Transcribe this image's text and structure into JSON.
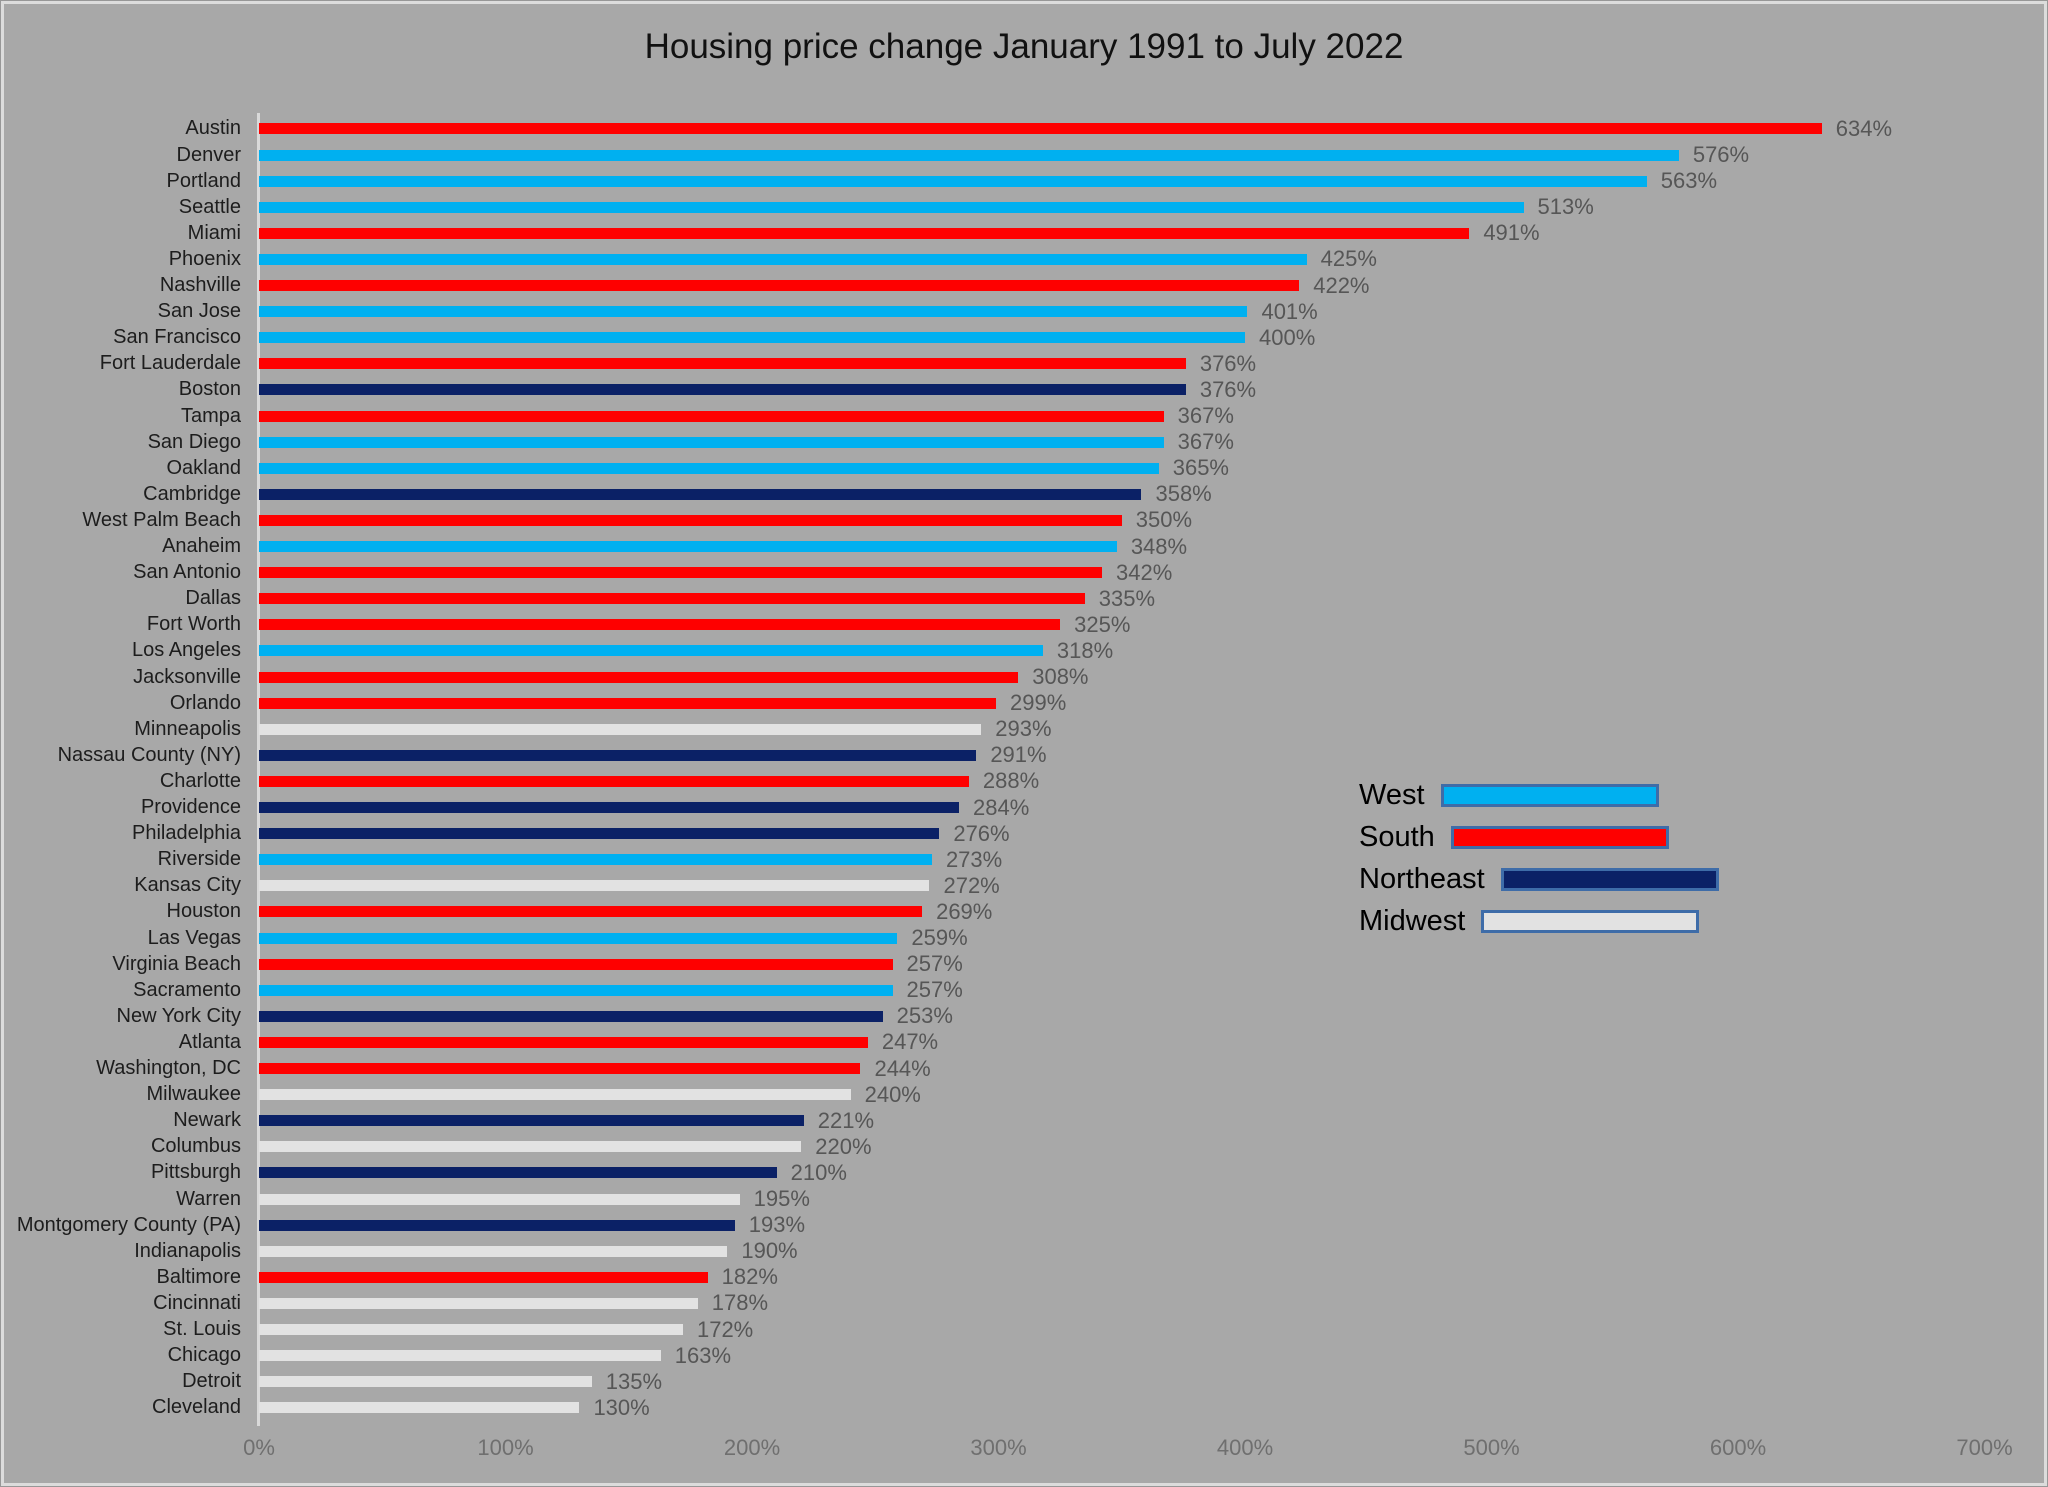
{
  "title": "Housing price change January 1991 to July 2022",
  "legend": {
    "items": [
      {
        "label": "West",
        "color": "#00B0F0"
      },
      {
        "label": "South",
        "color": "#FE0000"
      },
      {
        "label": "Northeast",
        "color": "#0B2166"
      },
      {
        "label": "Midwest",
        "color": "#E2E2E2"
      }
    ],
    "swatch_border_color": "#3E6CA8"
  },
  "axis": {
    "ticks": [
      "0%",
      "100%",
      "200%",
      "300%",
      "400%",
      "500%",
      "600%",
      "700%"
    ]
  },
  "chart_data": {
    "type": "bar",
    "orientation": "horizontal",
    "title": "Housing price change January 1991 to July 2022",
    "xlabel": "",
    "ylabel": "",
    "xlim": [
      0,
      700
    ],
    "grid": false,
    "legend_position": "right-middle",
    "value_suffix": "%",
    "background_color": "#A8A8A8",
    "region_colors": {
      "West": "#00B0F0",
      "South": "#FE0000",
      "Northeast": "#0B2166",
      "Midwest": "#E2E2E2"
    },
    "categories": [
      "Austin",
      "Denver",
      "Portland",
      "Seattle",
      "Miami",
      "Phoenix",
      "Nashville",
      "San Jose",
      "San Francisco",
      "Fort Lauderdale",
      "Boston",
      "Tampa",
      "San Diego",
      "Oakland",
      "Cambridge",
      "West Palm Beach",
      "Anaheim",
      "San Antonio",
      "Dallas",
      "Fort Worth",
      "Los Angeles",
      "Jacksonville",
      "Orlando",
      "Minneapolis",
      "Nassau County (NY)",
      "Charlotte",
      "Providence",
      "Philadelphia",
      "Riverside",
      "Kansas City",
      "Houston",
      "Las Vegas",
      "Virginia Beach",
      "Sacramento",
      "New York City",
      "Atlanta",
      "Washington, DC",
      "Milwaukee",
      "Newark",
      "Columbus",
      "Pittsburgh",
      "Warren",
      "Montgomery County (PA)",
      "Indianapolis",
      "Baltimore",
      "Cincinnati",
      "St. Louis",
      "Chicago",
      "Detroit",
      "Cleveland"
    ],
    "values": [
      634,
      576,
      563,
      513,
      491,
      425,
      422,
      401,
      400,
      376,
      376,
      367,
      367,
      365,
      358,
      350,
      348,
      342,
      335,
      325,
      318,
      308,
      299,
      293,
      291,
      288,
      284,
      276,
      273,
      272,
      269,
      259,
      257,
      257,
      253,
      247,
      244,
      240,
      221,
      220,
      210,
      195,
      193,
      190,
      182,
      178,
      172,
      163,
      135,
      130
    ],
    "value_labels": [
      "634%",
      "576%",
      "563%",
      "513%",
      "491%",
      "425%",
      "422%",
      "401%",
      "400%",
      "376%",
      "376%",
      "367%",
      "367%",
      "365%",
      "358%",
      "350%",
      "348%",
      "342%",
      "335%",
      "325%",
      "318%",
      "308%",
      "299%",
      "293%",
      "291%",
      "288%",
      "284%",
      "276%",
      "273%",
      "272%",
      "269%",
      "259%",
      "257%",
      "257%",
      "253%",
      "247%",
      "244%",
      "240%",
      "221%",
      "220%",
      "210%",
      "195%",
      "193%",
      "190%",
      "182%",
      "178%",
      "172%",
      "163%",
      "135%",
      "130%"
    ],
    "regions": [
      "South",
      "West",
      "West",
      "West",
      "South",
      "West",
      "South",
      "West",
      "West",
      "South",
      "Northeast",
      "South",
      "West",
      "West",
      "Northeast",
      "South",
      "West",
      "South",
      "South",
      "South",
      "West",
      "South",
      "South",
      "Midwest",
      "Northeast",
      "South",
      "Northeast",
      "Northeast",
      "West",
      "Midwest",
      "South",
      "West",
      "South",
      "West",
      "Northeast",
      "South",
      "South",
      "Midwest",
      "Northeast",
      "Midwest",
      "Northeast",
      "Midwest",
      "Northeast",
      "Midwest",
      "South",
      "Midwest",
      "Midwest",
      "Midwest",
      "Midwest",
      "Midwest"
    ]
  }
}
